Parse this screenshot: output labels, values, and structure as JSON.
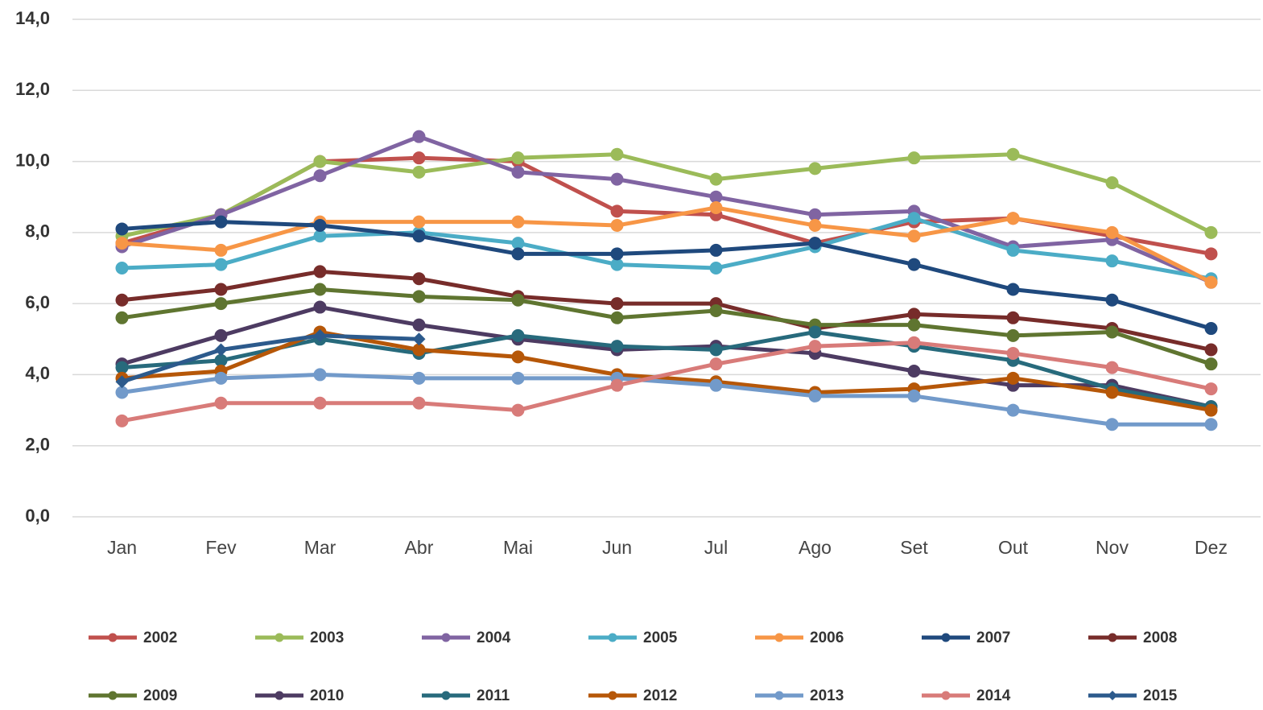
{
  "chart_data": {
    "type": "line",
    "categories": [
      "Jan",
      "Fev",
      "Mar",
      "Abr",
      "Mai",
      "Jun",
      "Jul",
      "Ago",
      "Set",
      "Out",
      "Nov",
      "Dez"
    ],
    "ylim": [
      0,
      14
    ],
    "yticks": [
      {
        "value": 0,
        "label": "0,0"
      },
      {
        "value": 2,
        "label": "2,0"
      },
      {
        "value": 4,
        "label": "4,0"
      },
      {
        "value": 6,
        "label": "6,0"
      },
      {
        "value": 8,
        "label": "8,0"
      },
      {
        "value": 10,
        "label": "10,0"
      },
      {
        "value": 12,
        "label": "12,0"
      },
      {
        "value": 14,
        "label": "14,0"
      }
    ],
    "grid": true,
    "legend": "bottom",
    "series": [
      {
        "name": "2002",
        "color": "#c0504d",
        "values": [
          7.7,
          8.5,
          10.0,
          10.1,
          10.0,
          8.6,
          8.5,
          7.7,
          8.3,
          8.4,
          7.9,
          7.4
        ]
      },
      {
        "name": "2003",
        "color": "#9bbb59",
        "values": [
          7.9,
          8.5,
          10.0,
          9.7,
          10.1,
          10.2,
          9.5,
          9.8,
          10.1,
          10.2,
          9.4,
          8.0
        ]
      },
      {
        "name": "2004",
        "color": "#8064a2",
        "values": [
          7.6,
          8.5,
          9.6,
          10.7,
          9.7,
          9.5,
          9.0,
          8.5,
          8.6,
          7.6,
          7.8,
          6.6
        ]
      },
      {
        "name": "2005",
        "color": "#4bacc6",
        "values": [
          7.0,
          7.1,
          7.9,
          8.0,
          7.7,
          7.1,
          7.0,
          7.6,
          8.4,
          7.5,
          7.2,
          6.7
        ]
      },
      {
        "name": "2006",
        "color": "#f79646",
        "values": [
          7.7,
          7.5,
          8.3,
          8.3,
          8.3,
          8.2,
          8.7,
          8.2,
          7.9,
          8.4,
          8.0,
          6.6
        ]
      },
      {
        "name": "2007",
        "color": "#1f497d",
        "values": [
          8.1,
          8.3,
          8.2,
          7.9,
          7.4,
          7.4,
          7.5,
          7.7,
          7.1,
          6.4,
          6.1,
          5.3
        ]
      },
      {
        "name": "2008",
        "color": "#772c2a",
        "values": [
          6.1,
          6.4,
          6.9,
          6.7,
          6.2,
          6.0,
          6.0,
          5.3,
          5.7,
          5.6,
          5.3,
          4.7
        ]
      },
      {
        "name": "2009",
        "color": "#5f7530",
        "values": [
          5.6,
          6.0,
          6.4,
          6.2,
          6.1,
          5.6,
          5.8,
          5.4,
          5.4,
          5.1,
          5.2,
          4.3
        ]
      },
      {
        "name": "2010",
        "color": "#4d3b62",
        "values": [
          4.3,
          5.1,
          5.9,
          5.4,
          5.0,
          4.7,
          4.8,
          4.6,
          4.1,
          3.7,
          3.7,
          3.1
        ]
      },
      {
        "name": "2011",
        "color": "#276a7c",
        "values": [
          4.2,
          4.4,
          5.0,
          4.6,
          5.1,
          4.8,
          4.7,
          5.2,
          4.8,
          4.4,
          3.6,
          3.1
        ]
      },
      {
        "name": "2012",
        "color": "#b65708",
        "values": [
          3.9,
          4.1,
          5.2,
          4.7,
          4.5,
          4.0,
          3.8,
          3.5,
          3.6,
          3.9,
          3.5,
          3.0
        ]
      },
      {
        "name": "2013",
        "color": "#729aca",
        "values": [
          3.5,
          3.9,
          4.0,
          3.9,
          3.9,
          3.9,
          3.7,
          3.4,
          3.4,
          3.0,
          2.6,
          2.6
        ]
      },
      {
        "name": "2014",
        "color": "#d87b79",
        "values": [
          2.7,
          3.2,
          3.2,
          3.2,
          3.0,
          3.7,
          4.3,
          4.8,
          4.9,
          4.6,
          4.2,
          3.6
        ]
      },
      {
        "name": "2015",
        "color": "#2c5a8c",
        "marker": "diamond",
        "values": [
          3.8,
          4.7,
          5.1,
          5.0,
          null,
          null,
          null,
          null,
          null,
          null,
          null,
          null
        ]
      }
    ]
  }
}
